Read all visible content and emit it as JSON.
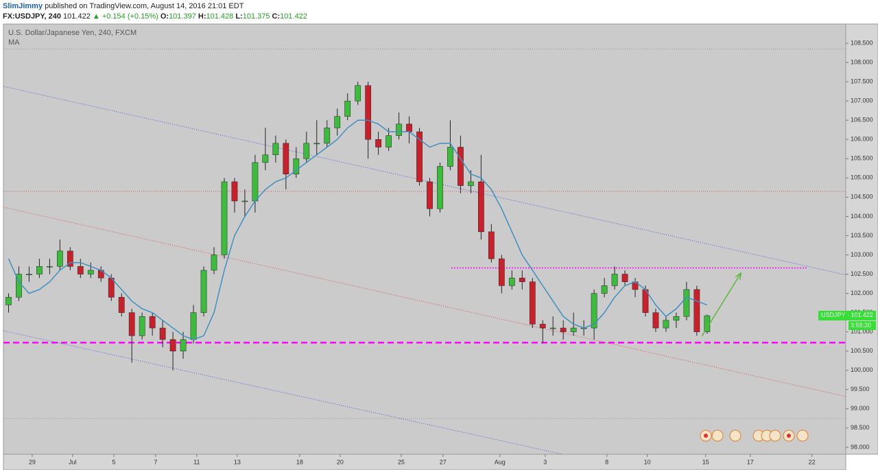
{
  "header": {
    "author": "SlimJimmy",
    "published": "published on TradingView.com, August 14, 2016 21:01 EDT",
    "symbol": "FX:USDJPY, 240",
    "last": "101.422",
    "change": "▲ +0.154 (+0.15%)",
    "ohlc": [
      {
        "label": "O:",
        "value": "101.397"
      },
      {
        "label": "H:",
        "value": "101.428"
      },
      {
        "label": "L:",
        "value": "101.375"
      },
      {
        "label": "C:",
        "value": "101.422"
      }
    ]
  },
  "chart_data": {
    "type": "candlestick",
    "title": "U.S. Dollar/Japanese Yen, 240, FXCM",
    "indicator": "MA",
    "up_color": "#3dbb3d",
    "down_color": "#c8212b",
    "ma_color": "#3f8fc0",
    "xlim": [
      0,
      82
    ],
    "ylim": [
      97.82,
      109.0
    ],
    "yticks": [
      {
        "value": 98,
        "label": "98.000"
      },
      {
        "value": 98.5,
        "label": "98.500"
      },
      {
        "value": 99,
        "label": "99.000"
      },
      {
        "value": 99.5,
        "label": "99.500"
      },
      {
        "value": 100,
        "label": "100.000"
      },
      {
        "value": 100.5,
        "label": "100.500"
      },
      {
        "value": 101,
        "label": "101.000"
      },
      {
        "value": 101.5,
        "label": "101.500"
      },
      {
        "value": 102,
        "label": "102.000"
      },
      {
        "value": 102.5,
        "label": "102.500"
      },
      {
        "value": 103,
        "label": "103.000"
      },
      {
        "value": 103.5,
        "label": "103.500"
      },
      {
        "value": 104,
        "label": "104.000"
      },
      {
        "value": 104.5,
        "label": "104.500"
      },
      {
        "value": 105,
        "label": "105.000"
      },
      {
        "value": 105.5,
        "label": "105.500"
      },
      {
        "value": 106,
        "label": "106.000"
      },
      {
        "value": 106.5,
        "label": "106.500"
      },
      {
        "value": 107,
        "label": "107.000"
      },
      {
        "value": 107.5,
        "label": "107.500"
      },
      {
        "value": 108,
        "label": "108.000"
      },
      {
        "value": 108.5,
        "label": "108.500"
      }
    ],
    "xticks": [
      {
        "value": 2.8,
        "label": "29"
      },
      {
        "value": 6.74,
        "label": "Jul"
      },
      {
        "value": 10.75,
        "label": "5"
      },
      {
        "value": 14.82,
        "label": "7"
      },
      {
        "value": 18.82,
        "label": "11"
      },
      {
        "value": 22.76,
        "label": "13"
      },
      {
        "value": 28.84,
        "label": "18"
      },
      {
        "value": 32.78,
        "label": "20"
      },
      {
        "value": 38.72,
        "label": "25"
      },
      {
        "value": 42.79,
        "label": "27"
      },
      {
        "value": 48.33,
        "label": "Aug"
      },
      {
        "value": 52.74,
        "label": "3"
      },
      {
        "value": 58.74,
        "label": "8"
      },
      {
        "value": 62.68,
        "label": "10"
      },
      {
        "value": 68.36,
        "label": "15"
      },
      {
        "value": 72.7,
        "label": "17"
      },
      {
        "value": 78.7,
        "label": "22"
      }
    ],
    "candles": [
      {
        "o": 101.7,
        "h": 102.0,
        "l": 101.5,
        "c": 101.9
      },
      {
        "o": 101.9,
        "h": 102.7,
        "l": 101.8,
        "c": 102.5
      },
      {
        "o": 102.5,
        "h": 102.7,
        "l": 102.3,
        "c": 102.5
      },
      {
        "o": 102.5,
        "h": 102.9,
        "l": 102.4,
        "c": 102.7
      },
      {
        "o": 102.7,
        "h": 102.9,
        "l": 102.5,
        "c": 102.7
      },
      {
        "o": 102.7,
        "h": 103.4,
        "l": 102.6,
        "c": 103.1
      },
      {
        "o": 103.1,
        "h": 103.2,
        "l": 102.6,
        "c": 102.7
      },
      {
        "o": 102.7,
        "h": 102.9,
        "l": 102.4,
        "c": 102.5
      },
      {
        "o": 102.5,
        "h": 102.8,
        "l": 102.4,
        "c": 102.6
      },
      {
        "o": 102.6,
        "h": 102.7,
        "l": 102.3,
        "c": 102.4
      },
      {
        "o": 102.4,
        "h": 102.5,
        "l": 101.8,
        "c": 101.9
      },
      {
        "o": 101.9,
        "h": 102.0,
        "l": 101.4,
        "c": 101.5
      },
      {
        "o": 101.5,
        "h": 101.6,
        "l": 100.2,
        "c": 100.9
      },
      {
        "o": 100.9,
        "h": 101.5,
        "l": 100.8,
        "c": 101.4
      },
      {
        "o": 101.4,
        "h": 101.5,
        "l": 100.9,
        "c": 101.1
      },
      {
        "o": 101.1,
        "h": 101.3,
        "l": 100.6,
        "c": 100.8
      },
      {
        "o": 100.8,
        "h": 101.0,
        "l": 100.0,
        "c": 100.5
      },
      {
        "o": 100.5,
        "h": 101.0,
        "l": 100.3,
        "c": 100.8
      },
      {
        "o": 100.8,
        "h": 101.7,
        "l": 100.7,
        "c": 101.5
      },
      {
        "o": 101.5,
        "h": 102.7,
        "l": 101.4,
        "c": 102.6
      },
      {
        "o": 102.6,
        "h": 103.2,
        "l": 102.5,
        "c": 103.0
      },
      {
        "o": 103.0,
        "h": 105.0,
        "l": 102.9,
        "c": 104.9
      },
      {
        "o": 104.9,
        "h": 105.0,
        "l": 104.1,
        "c": 104.4
      },
      {
        "o": 104.4,
        "h": 104.7,
        "l": 104.0,
        "c": 104.4
      },
      {
        "o": 104.4,
        "h": 105.6,
        "l": 104.1,
        "c": 105.4
      },
      {
        "o": 105.4,
        "h": 106.3,
        "l": 105.2,
        "c": 105.6
      },
      {
        "o": 105.6,
        "h": 106.1,
        "l": 105.4,
        "c": 105.9
      },
      {
        "o": 105.9,
        "h": 106.0,
        "l": 104.7,
        "c": 105.1
      },
      {
        "o": 105.1,
        "h": 105.8,
        "l": 105.0,
        "c": 105.5
      },
      {
        "o": 105.5,
        "h": 106.2,
        "l": 105.4,
        "c": 105.9
      },
      {
        "o": 105.9,
        "h": 106.5,
        "l": 105.6,
        "c": 105.9
      },
      {
        "o": 105.9,
        "h": 106.5,
        "l": 105.8,
        "c": 106.3
      },
      {
        "o": 106.3,
        "h": 106.8,
        "l": 106.1,
        "c": 106.6
      },
      {
        "o": 106.6,
        "h": 107.2,
        "l": 106.5,
        "c": 107.0
      },
      {
        "o": 107.0,
        "h": 107.5,
        "l": 106.9,
        "c": 107.4
      },
      {
        "o": 107.4,
        "h": 107.5,
        "l": 105.5,
        "c": 106.0
      },
      {
        "o": 106.0,
        "h": 106.2,
        "l": 105.6,
        "c": 105.8
      },
      {
        "o": 105.8,
        "h": 106.3,
        "l": 105.7,
        "c": 106.1
      },
      {
        "o": 106.1,
        "h": 106.7,
        "l": 106.0,
        "c": 106.4
      },
      {
        "o": 106.4,
        "h": 106.6,
        "l": 105.9,
        "c": 106.2
      },
      {
        "o": 106.2,
        "h": 106.3,
        "l": 104.8,
        "c": 104.9
      },
      {
        "o": 104.9,
        "h": 105.0,
        "l": 104.0,
        "c": 104.2
      },
      {
        "o": 104.2,
        "h": 105.4,
        "l": 104.1,
        "c": 105.3
      },
      {
        "o": 105.3,
        "h": 106.5,
        "l": 105.2,
        "c": 105.8
      },
      {
        "o": 105.8,
        "h": 106.1,
        "l": 104.6,
        "c": 104.8
      },
      {
        "o": 104.8,
        "h": 105.2,
        "l": 104.6,
        "c": 104.9
      },
      {
        "o": 104.9,
        "h": 105.6,
        "l": 103.4,
        "c": 103.6
      },
      {
        "o": 103.6,
        "h": 103.8,
        "l": 102.8,
        "c": 102.9
      },
      {
        "o": 102.9,
        "h": 103.0,
        "l": 102.0,
        "c": 102.2
      },
      {
        "o": 102.2,
        "h": 102.6,
        "l": 102.1,
        "c": 102.4
      },
      {
        "o": 102.4,
        "h": 102.6,
        "l": 102.1,
        "c": 102.3
      },
      {
        "o": 102.3,
        "h": 102.4,
        "l": 101.1,
        "c": 101.2
      },
      {
        "o": 101.2,
        "h": 101.3,
        "l": 100.7,
        "c": 101.1
      },
      {
        "o": 101.1,
        "h": 101.4,
        "l": 100.9,
        "c": 101.1
      },
      {
        "o": 101.1,
        "h": 101.3,
        "l": 100.8,
        "c": 101.0
      },
      {
        "o": 101.0,
        "h": 101.5,
        "l": 100.9,
        "c": 101.1
      },
      {
        "o": 101.1,
        "h": 101.3,
        "l": 100.9,
        "c": 101.1
      },
      {
        "o": 101.1,
        "h": 102.1,
        "l": 100.8,
        "c": 102.0
      },
      {
        "o": 102.0,
        "h": 102.4,
        "l": 101.9,
        "c": 102.2
      },
      {
        "o": 102.2,
        "h": 102.7,
        "l": 102.1,
        "c": 102.5
      },
      {
        "o": 102.5,
        "h": 102.6,
        "l": 102.2,
        "c": 102.3
      },
      {
        "o": 102.3,
        "h": 102.4,
        "l": 101.9,
        "c": 102.1
      },
      {
        "o": 102.1,
        "h": 102.2,
        "l": 101.4,
        "c": 101.5
      },
      {
        "o": 101.5,
        "h": 101.6,
        "l": 101.0,
        "c": 101.1
      },
      {
        "o": 101.1,
        "h": 101.4,
        "l": 101.0,
        "c": 101.3
      },
      {
        "o": 101.3,
        "h": 101.5,
        "l": 101.1,
        "c": 101.4
      },
      {
        "o": 101.4,
        "h": 102.3,
        "l": 101.3,
        "c": 102.1
      },
      {
        "o": 102.1,
        "h": 102.2,
        "l": 100.9,
        "c": 101.0
      },
      {
        "o": 101.0,
        "h": 101.45,
        "l": 100.95,
        "c": 101.42
      }
    ],
    "ma": [
      102.9,
      102.3,
      102.0,
      102.1,
      102.3,
      102.6,
      102.8,
      102.8,
      102.7,
      102.6,
      102.4,
      102.1,
      101.8,
      101.6,
      101.5,
      101.3,
      101.1,
      100.9,
      100.8,
      100.9,
      101.5,
      102.6,
      103.5,
      104.0,
      104.4,
      104.7,
      104.9,
      105.0,
      105.2,
      105.4,
      105.6,
      105.8,
      106.0,
      106.3,
      106.5,
      106.5,
      106.4,
      106.2,
      106.2,
      106.2,
      106.0,
      105.8,
      105.9,
      105.9,
      105.5,
      105.1,
      105.0,
      104.7,
      104.2,
      103.6,
      103.0,
      102.6,
      102.2,
      101.8,
      101.4,
      101.2,
      101.1,
      101.2,
      101.5,
      101.9,
      102.2,
      102.3,
      102.1,
      101.7,
      101.4,
      101.6,
      101.9,
      101.8,
      101.7
    ],
    "trendlines": [
      {
        "color": "#4a5ad8",
        "x": [
          0,
          82
        ],
        "y": [
          107.38,
          102.48
        ]
      },
      {
        "color": "#4a5ad8",
        "x": [
          0,
          54.4
        ],
        "y": [
          101.03,
          97.82
        ]
      },
      {
        "color": "#e05050",
        "x": [
          0,
          82
        ],
        "y": [
          104.24,
          99.32
        ]
      }
    ],
    "hlines": [
      {
        "value": 100.72,
        "color": "#ff00ff",
        "dash": "9 5",
        "width": 2.5
      },
      {
        "value": 102.66,
        "color": "#ff00ff",
        "dash": "2 2",
        "width": 1.5,
        "x": [
          43.6,
          78.3
        ]
      },
      {
        "value": 104.65,
        "color": "#e05050",
        "dash": "1 2",
        "width": 1
      },
      {
        "value": 108.35,
        "color": "#999999",
        "dash": "1 2",
        "width": 1
      },
      {
        "value": 98.75,
        "color": "#999999",
        "dash": "1 2",
        "width": 1
      }
    ],
    "arrow": {
      "color": "#5cb83c",
      "x": [
        68.0,
        71.8
      ],
      "y": [
        100.89,
        102.53
      ]
    },
    "price_label": {
      "name": "USDJPY",
      "value": 101.422,
      "label": "101.422",
      "timer": "3:58:20",
      "color": "#33e033"
    }
  }
}
